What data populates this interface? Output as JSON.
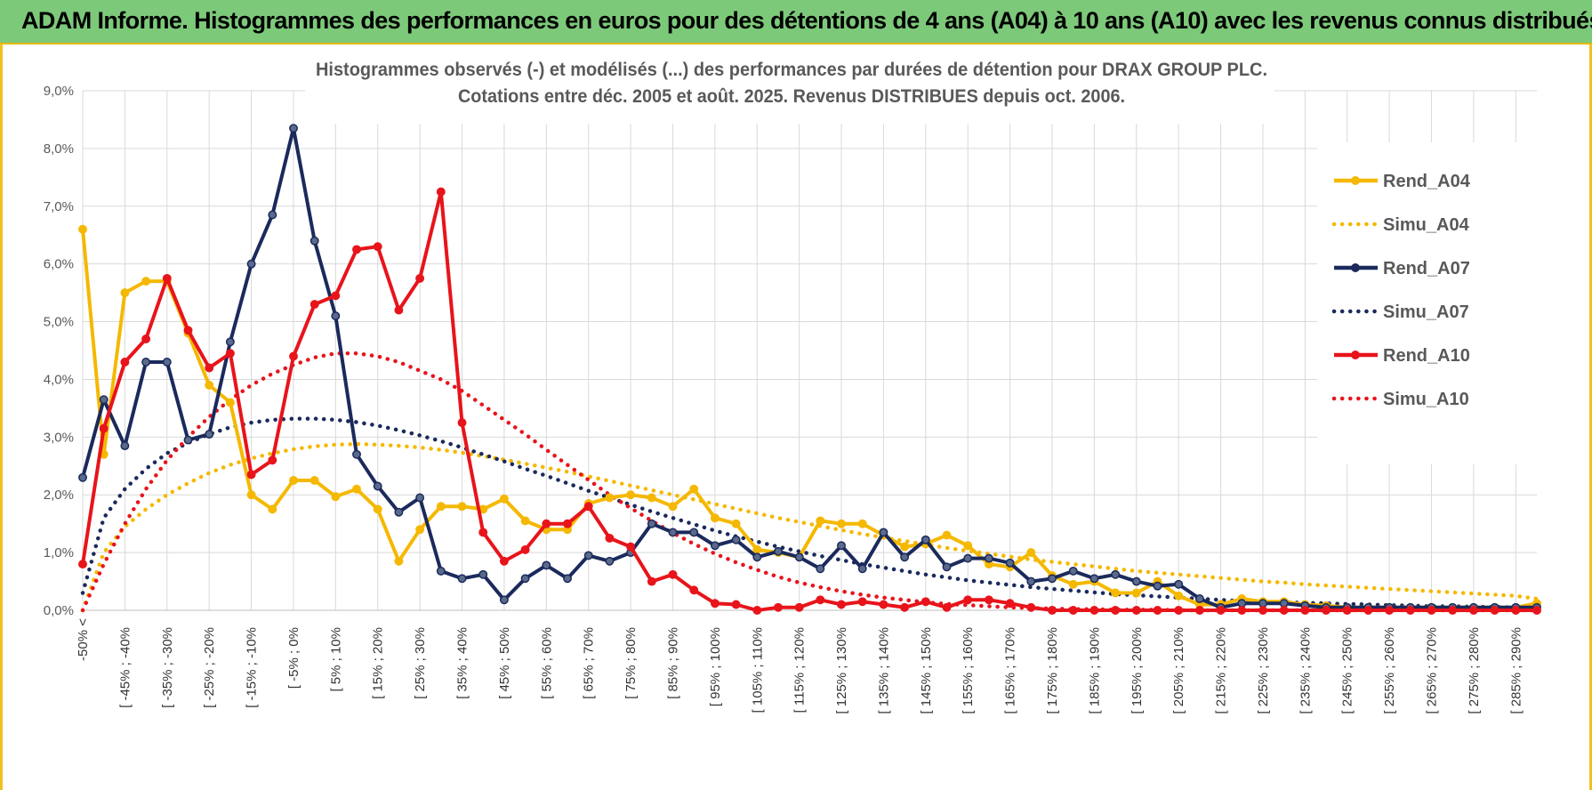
{
  "banner": {
    "title": "ADAM Informe. Histogrammes des performances en euros pour des détentions de 4 ans (A04) à 10 ans (A10) avec les revenus connus distribués"
  },
  "colors": {
    "a04": "#f5b800",
    "a07": "#1b2a5c",
    "a10": "#e8141b",
    "banner": "#7dc97a",
    "grid": "#d9d9d9"
  },
  "chart_data": {
    "type": "line",
    "title": "Histogrammes observés (-) et modélisés (...) des performances par durées de détention pour DRAX GROUP PLC.",
    "subtitle": "Cotations entre déc. 2005 et août. 2025. Revenus DISTRIBUES depuis oct. 2006.",
    "ylim": [
      0,
      9
    ],
    "yticks": [
      "0,0%",
      "1,0%",
      "2,0%",
      "3,0%",
      "4,0%",
      "5,0%",
      "6,0%",
      "7,0%",
      "8,0%",
      "9,0%"
    ],
    "grid": true,
    "legend_position": "right",
    "x_labels": [
      "-50% <",
      "[ -45% ; -40%",
      "[ -35% ; -30%",
      "[ -25% ; -20%",
      "[ -15% ; -10%",
      "[ -5% ; 0%",
      "[ 5% ; 10%",
      "[ 15% ; 20%",
      "[ 25% ; 30%",
      "[ 35% ; 40%",
      "[ 45% ; 50%",
      "[ 55% ; 60%",
      "[ 65% ; 70%",
      "[ 75% ; 80%",
      "[ 85% ; 90%",
      "[ 95% ; 100%",
      "[ 105% ; 110%",
      "[ 115% ; 120%",
      "[ 125% ; 130%",
      "[ 135% ; 140%",
      "[ 145% ; 150%",
      "[ 155% ; 160%",
      "[ 165% ; 170%",
      "[ 175% ; 180%",
      "[ 185% ; 190%",
      "[ 195% ; 200%",
      "[ 205% ; 210%",
      "[ 215% ; 220%",
      "[ 225% ; 230%",
      "[ 235% ; 240%",
      "[ 245% ; 250%",
      "[ 255% ; 260%",
      "[ 265% ; 270%",
      "[ 275% ; 280%",
      "[ 285% ; 290%"
    ],
    "categories_count": 70,
    "series": [
      {
        "name": "Rend_A04",
        "style": "solid",
        "color": "#f5b800",
        "values": [
          6.6,
          2.7,
          5.5,
          5.7,
          5.7,
          4.8,
          3.9,
          3.6,
          2.0,
          1.75,
          2.25,
          2.25,
          1.97,
          2.1,
          1.75,
          0.85,
          1.4,
          1.8,
          1.8,
          1.75,
          1.93,
          1.55,
          1.4,
          1.4,
          1.85,
          1.95,
          2.0,
          1.95,
          1.8,
          2.1,
          1.6,
          1.5,
          1.05,
          1.0,
          0.92,
          1.55,
          1.5,
          1.5,
          1.3,
          1.1,
          1.15,
          1.3,
          1.12,
          0.8,
          0.75,
          1.0,
          0.6,
          0.45,
          0.5,
          0.3,
          0.3,
          0.5,
          0.25,
          0.1,
          0.1,
          0.2,
          0.15,
          0.15,
          0.1,
          0.08,
          0.05,
          0.05,
          0.05,
          0.05,
          0.05,
          0.05,
          0.05,
          0.05,
          0.05,
          0.12
        ]
      },
      {
        "name": "Simu_A04",
        "style": "dotted",
        "color": "#f5b800",
        "values": [
          0.0,
          1.0,
          1.45,
          1.75,
          2.0,
          2.2,
          2.38,
          2.52,
          2.63,
          2.72,
          2.79,
          2.84,
          2.87,
          2.88,
          2.87,
          2.85,
          2.82,
          2.78,
          2.73,
          2.67,
          2.61,
          2.54,
          2.47,
          2.4,
          2.32,
          2.24,
          2.16,
          2.08,
          2.0,
          1.92,
          1.84,
          1.76,
          1.68,
          1.6,
          1.53,
          1.46,
          1.39,
          1.32,
          1.26,
          1.2,
          1.14,
          1.08,
          1.03,
          0.98,
          0.93,
          0.88,
          0.84,
          0.8,
          0.76,
          0.72,
          0.68,
          0.65,
          0.62,
          0.59,
          0.56,
          0.53,
          0.5,
          0.48,
          0.45,
          0.43,
          0.41,
          0.39,
          0.37,
          0.35,
          0.33,
          0.31,
          0.29,
          0.27,
          0.25,
          0.2
        ]
      },
      {
        "name": "Rend_A07",
        "style": "solid",
        "color": "#1b2a5c",
        "values": [
          2.3,
          3.65,
          2.85,
          4.3,
          4.3,
          2.95,
          3.05,
          4.65,
          6.0,
          6.85,
          8.35,
          6.4,
          5.1,
          2.7,
          2.15,
          1.7,
          1.95,
          0.68,
          0.55,
          0.62,
          0.18,
          0.55,
          0.78,
          0.55,
          0.95,
          0.85,
          1.0,
          1.5,
          1.35,
          1.35,
          1.12,
          1.22,
          0.92,
          1.02,
          0.92,
          0.72,
          1.12,
          0.72,
          1.35,
          0.92,
          1.22,
          0.75,
          0.9,
          0.9,
          0.82,
          0.5,
          0.55,
          0.68,
          0.55,
          0.62,
          0.5,
          0.42,
          0.45,
          0.2,
          0.05,
          0.12,
          0.12,
          0.12,
          0.08,
          0.05,
          0.05,
          0.05,
          0.05,
          0.05,
          0.05,
          0.05,
          0.05,
          0.05,
          0.05,
          0.05
        ]
      },
      {
        "name": "Simu_A07",
        "style": "dotted",
        "color": "#1b2a5c",
        "values": [
          0.3,
          1.6,
          2.1,
          2.45,
          2.72,
          2.9,
          3.05,
          3.17,
          3.25,
          3.3,
          3.32,
          3.32,
          3.3,
          3.26,
          3.2,
          3.12,
          3.03,
          2.93,
          2.82,
          2.7,
          2.58,
          2.45,
          2.33,
          2.2,
          2.07,
          1.95,
          1.83,
          1.71,
          1.6,
          1.49,
          1.38,
          1.28,
          1.19,
          1.1,
          1.02,
          0.94,
          0.87,
          0.8,
          0.74,
          0.68,
          0.62,
          0.57,
          0.52,
          0.48,
          0.44,
          0.4,
          0.37,
          0.34,
          0.31,
          0.28,
          0.26,
          0.24,
          0.22,
          0.2,
          0.18,
          0.16,
          0.15,
          0.14,
          0.13,
          0.12,
          0.11,
          0.1,
          0.09,
          0.08,
          0.07,
          0.07,
          0.06,
          0.06,
          0.05,
          0.05
        ]
      },
      {
        "name": "Rend_A10",
        "style": "solid",
        "color": "#e8141b",
        "values": [
          0.8,
          3.15,
          4.3,
          4.7,
          5.75,
          4.85,
          4.2,
          4.45,
          2.35,
          2.6,
          4.4,
          5.3,
          5.45,
          6.25,
          6.3,
          5.2,
          5.75,
          7.25,
          3.25,
          1.35,
          0.85,
          1.05,
          1.5,
          1.5,
          1.8,
          1.25,
          1.1,
          0.5,
          0.62,
          0.35,
          0.12,
          0.1,
          0.0,
          0.05,
          0.05,
          0.18,
          0.1,
          0.15,
          0.1,
          0.05,
          0.15,
          0.05,
          0.18,
          0.18,
          0.12,
          0.05,
          0.0,
          0.0,
          0.0,
          0.0,
          0.0,
          0.0,
          0.0,
          0.0,
          0.0,
          0.0,
          0.0,
          0.0,
          0.0,
          0.0,
          0.0,
          0.0,
          0.0,
          0.0,
          0.0,
          0.0,
          0.0,
          0.0,
          0.0,
          0.0
        ]
      },
      {
        "name": "Simu_A10",
        "style": "dotted",
        "color": "#e8141b",
        "values": [
          0.0,
          0.8,
          1.5,
          2.1,
          2.6,
          3.0,
          3.35,
          3.65,
          3.9,
          4.1,
          4.25,
          4.38,
          4.45,
          4.45,
          4.4,
          4.3,
          4.15,
          4.0,
          3.8,
          3.55,
          3.3,
          3.05,
          2.78,
          2.52,
          2.26,
          2.0,
          1.77,
          1.55,
          1.34,
          1.15,
          0.98,
          0.83,
          0.7,
          0.58,
          0.48,
          0.4,
          0.33,
          0.27,
          0.22,
          0.18,
          0.14,
          0.11,
          0.09,
          0.07,
          0.05,
          0.04,
          0.03,
          0.02,
          0.02,
          0.01,
          0.01,
          0.01,
          0.0,
          0.0,
          0.0,
          0.0,
          0.0,
          0.0,
          0.0,
          0.0,
          0.0,
          0.0,
          0.0,
          0.0,
          0.0,
          0.0,
          0.0,
          0.0,
          0.0,
          0.0
        ]
      }
    ]
  }
}
